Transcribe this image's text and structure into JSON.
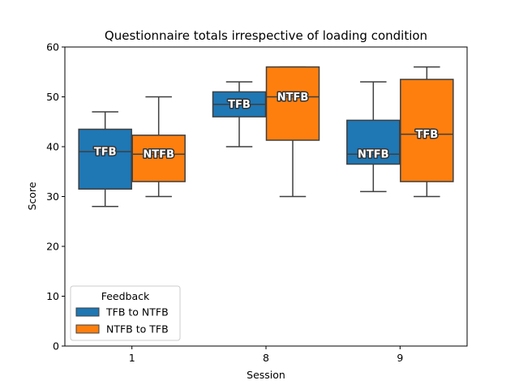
{
  "chart_data": {
    "type": "box",
    "title": "Questionnaire totals irrespective of loading condition",
    "xlabel": "Session",
    "ylabel": "Score",
    "ylim": [
      0,
      60
    ],
    "yticks": [
      0,
      10,
      20,
      30,
      40,
      50,
      60
    ],
    "categories": [
      "1",
      "8",
      "9"
    ],
    "grid": false,
    "legend": {
      "title": "Feedback",
      "placement": "lower-left",
      "entries": [
        {
          "name": "TFB to NTFB",
          "color": "#1f77b4"
        },
        {
          "name": "NTFB to TFB",
          "color": "#ff7f0e"
        }
      ]
    },
    "series": [
      {
        "name": "TFB to NTFB",
        "color": "#1f77b4",
        "boxes": [
          {
            "category": "1",
            "min": 28,
            "q1": 31.5,
            "median": 39,
            "q3": 43.5,
            "max": 47,
            "label": "TFB"
          },
          {
            "category": "8",
            "min": 40,
            "q1": 46,
            "median": 48.5,
            "q3": 51,
            "max": 53,
            "label": "TFB"
          },
          {
            "category": "9",
            "min": 31,
            "q1": 36.5,
            "median": 38.5,
            "q3": 45.3,
            "max": 53,
            "label": "NTFB"
          }
        ]
      },
      {
        "name": "NTFB to TFB",
        "color": "#ff7f0e",
        "boxes": [
          {
            "category": "1",
            "min": 30,
            "q1": 33,
            "median": 38.5,
            "q3": 42.3,
            "max": 50,
            "label": "NTFB"
          },
          {
            "category": "8",
            "min": 30,
            "q1": 41.3,
            "median": 50,
            "q3": 56,
            "max": 56,
            "label": "NTFB"
          },
          {
            "category": "9",
            "min": 30,
            "q1": 33,
            "median": 42.5,
            "q3": 53.5,
            "max": 56,
            "label": "TFB"
          }
        ]
      }
    ]
  }
}
